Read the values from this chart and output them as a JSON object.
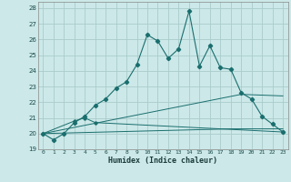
{
  "xlabel": "Humidex (Indice chaleur)",
  "xlim": [
    -0.5,
    23.5
  ],
  "ylim": [
    19,
    28.4
  ],
  "yticks": [
    19,
    20,
    21,
    22,
    23,
    24,
    25,
    26,
    27,
    28
  ],
  "xticks": [
    0,
    1,
    2,
    3,
    4,
    5,
    6,
    7,
    8,
    9,
    10,
    11,
    12,
    13,
    14,
    15,
    16,
    17,
    18,
    19,
    20,
    21,
    22,
    23
  ],
  "bg_color": "#cce8e8",
  "grid_color": "#aacccc",
  "line_color": "#1a6e6e",
  "series1": [
    [
      0,
      20.0
    ],
    [
      1,
      19.6
    ],
    [
      2,
      20.0
    ],
    [
      3,
      20.7
    ],
    [
      4,
      21.1
    ],
    [
      5,
      21.8
    ],
    [
      6,
      22.2
    ],
    [
      7,
      22.9
    ],
    [
      8,
      23.3
    ],
    [
      9,
      24.4
    ],
    [
      10,
      26.3
    ],
    [
      11,
      25.9
    ],
    [
      12,
      24.8
    ],
    [
      13,
      25.4
    ],
    [
      14,
      27.8
    ],
    [
      15,
      24.3
    ],
    [
      16,
      25.6
    ],
    [
      17,
      24.2
    ],
    [
      18,
      24.1
    ],
    [
      19,
      22.6
    ],
    [
      20,
      22.2
    ],
    [
      21,
      21.1
    ],
    [
      22,
      20.6
    ],
    [
      23,
      20.1
    ]
  ],
  "series2": [
    [
      0,
      20.0
    ],
    [
      3,
      20.8
    ],
    [
      4,
      21.0
    ],
    [
      5,
      20.7
    ],
    [
      23,
      20.1
    ]
  ],
  "series3": [
    [
      0,
      20.0
    ],
    [
      19,
      22.5
    ],
    [
      23,
      22.4
    ]
  ],
  "series4": [
    [
      0,
      20.0
    ],
    [
      18,
      20.3
    ],
    [
      23,
      20.3
    ]
  ]
}
